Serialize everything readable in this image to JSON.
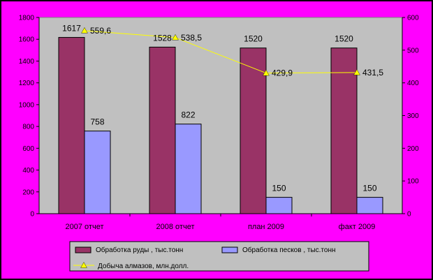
{
  "chart_data": {
    "type": "bar",
    "categories": [
      "2007 отчет",
      "2008 отчет",
      "план 2009",
      "факт 2009"
    ],
    "series": [
      {
        "name": "Обработка  руды , тыс.тонн",
        "type": "bar",
        "axis": "left",
        "color": "#993366",
        "values": [
          1617,
          1528,
          1520,
          1520
        ]
      },
      {
        "name": "Обработка  песков , тыс.тонн",
        "type": "bar",
        "axis": "left",
        "color": "#9999ff",
        "values": [
          758,
          822,
          150,
          150
        ]
      },
      {
        "name": "Добыча алмазов, млн.долл.",
        "type": "line",
        "axis": "right",
        "color": "#ffff00",
        "values": [
          559.6,
          538.5,
          429.9,
          431.5
        ],
        "labels": [
          "559,6",
          "538,5",
          "429,9",
          "431,5"
        ]
      }
    ],
    "y_left": {
      "min": 0,
      "max": 1800,
      "step": 200
    },
    "y_right": {
      "min": 0,
      "max": 600,
      "step": 100
    },
    "grid": false,
    "legend_position": "bottom",
    "colors": {
      "background": "#ff00ff",
      "plot_area": "#c0c0c0",
      "frame": "#000000"
    }
  }
}
